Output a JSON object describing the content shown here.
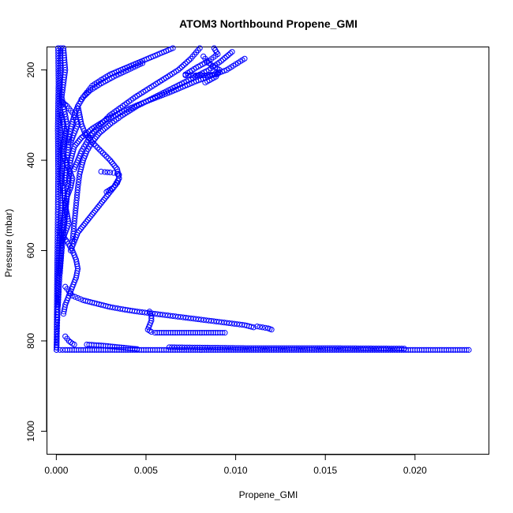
{
  "chart_data": {
    "type": "scatter",
    "title": "ATOM3 Northbound Propene_GMI",
    "xlabel": "Propene_GMI",
    "ylabel": "Pressure (mbar)",
    "xlim": [
      -0.0005,
      0.0241
    ],
    "ylim": [
      1050,
      150
    ],
    "y_reversed": true,
    "x_ticks": [
      "0.000",
      "0.005",
      "0.010",
      "0.015",
      "0.020"
    ],
    "x_tick_values": [
      0,
      0.005,
      0.01,
      0.015,
      0.02
    ],
    "y_ticks": [
      "200",
      "400",
      "600",
      "800",
      "1000"
    ],
    "y_tick_values": [
      200,
      400,
      600,
      800,
      1000
    ],
    "grid": false,
    "legend": "none",
    "color": "#0000ff",
    "series": [
      {
        "x": [
          0.00025,
          0.0002,
          0.0002,
          0.00022,
          0.00025,
          0.0002,
          0.00015,
          0.00012,
          0.0001,
          8e-05,
          5e-05,
          3e-05,
          2e-05,
          1e-05
        ],
        "y": [
          150,
          250,
          350,
          450,
          500,
          550,
          600,
          650,
          700,
          730,
          760,
          790,
          810,
          820
        ]
      },
      {
        "x": [
          0.0001,
          0.00012,
          8e-05,
          0.0001,
          8e-05,
          6e-05,
          4e-05,
          3e-05,
          2e-05,
          1e-05
        ],
        "y": [
          150,
          230,
          330,
          430,
          520,
          600,
          660,
          720,
          780,
          820
        ]
      },
      {
        "x": [
          0.0004,
          0.0005,
          0.0003,
          0.0006,
          0.0004,
          0.0003,
          0.0005,
          0.0003,
          0.0002,
          0.0001
        ],
        "y": [
          150,
          200,
          260,
          320,
          380,
          440,
          500,
          560,
          640,
          720
        ]
      },
      {
        "x": [
          0.0105,
          0.0095,
          0.0078,
          0.0063,
          0.005,
          0.0038,
          0.0028,
          0.002,
          0.0014,
          0.001,
          0.0008,
          0.0007,
          0.0006,
          0.0005,
          0.0004,
          0.0003,
          0.0002
        ],
        "y": [
          175,
          200,
          225,
          250,
          270,
          290,
          310,
          330,
          350,
          370,
          400,
          440,
          480,
          520,
          560,
          600,
          650
        ]
      },
      {
        "x": [
          0.0098,
          0.0092,
          0.0085,
          0.0075,
          0.0065,
          0.0055,
          0.0045,
          0.0037,
          0.003,
          0.0024,
          0.002,
          0.0017,
          0.0015,
          0.0013,
          0.0012,
          0.0011,
          0.001,
          0.0009
        ],
        "y": [
          160,
          180,
          200,
          220,
          240,
          260,
          280,
          300,
          320,
          340,
          360,
          380,
          400,
          430,
          460,
          500,
          540,
          580
        ]
      },
      {
        "x": [
          0.008,
          0.0075,
          0.0068,
          0.006,
          0.0052,
          0.0044,
          0.0037,
          0.003,
          0.0025,
          0.002,
          0.0017,
          0.0014,
          0.0012,
          0.001
        ],
        "y": [
          150,
          175,
          200,
          220,
          240,
          260,
          280,
          300,
          320,
          340,
          360,
          380,
          400,
          420
        ]
      },
      {
        "x": [
          0.0088,
          0.009,
          0.0085,
          0.0078,
          0.0072
        ],
        "y": [
          150,
          165,
          180,
          195,
          210
        ]
      },
      {
        "x": [
          0.0082,
          0.0085,
          0.0091,
          0.0089,
          0.0083
        ],
        "y": [
          170,
          185,
          200,
          215,
          228
        ]
      },
      {
        "x": [
          0.0065,
          0.006,
          0.0054,
          0.0048,
          0.0042,
          0.0036,
          0.003,
          0.0025,
          0.002,
          0.0017,
          0.0014
        ],
        "y": [
          150,
          160,
          170,
          180,
          190,
          200,
          210,
          222,
          235,
          250,
          265
        ]
      },
      {
        "x": [
          0.0072,
          0.0078,
          0.0084,
          0.0088,
          0.009,
          0.0089
        ],
        "y": [
          212,
          212,
          212,
          210,
          208,
          206
        ]
      },
      {
        "x": [
          0.0048,
          0.004,
          0.0032,
          0.0025,
          0.0019,
          0.0015,
          0.0012,
          0.001,
          0.0008,
          0.0007,
          0.0006,
          0.0005
        ],
        "y": [
          185,
          200,
          215,
          230,
          245,
          260,
          280,
          300,
          330,
          360,
          400,
          450
        ]
      },
      {
        "x": [
          0.0012,
          0.0013,
          0.0014,
          0.0016,
          0.002,
          0.0025,
          0.003,
          0.0034,
          0.0035,
          0.0032,
          0.0028,
          0.0024,
          0.002,
          0.0016,
          0.0012,
          0.001,
          0.0008
        ],
        "y": [
          280,
          300,
          320,
          340,
          360,
          380,
          400,
          420,
          440,
          460,
          480,
          500,
          520,
          540,
          560,
          580,
          600
        ]
      },
      {
        "x": [
          0.0025,
          0.0027,
          0.003,
          0.0032,
          0.0034,
          0.0035,
          0.0035,
          0.0034,
          0.0033,
          0.0032,
          0.003,
          0.0028
        ],
        "y": [
          425,
          426,
          427,
          428,
          430,
          432,
          440,
          450,
          455,
          460,
          465,
          470
        ]
      },
      {
        "x": [
          0.0005,
          0.0007,
          0.0009,
          0.0012,
          0.0015,
          0.002,
          0.0025,
          0.003,
          0.0037,
          0.0045,
          0.0055,
          0.0065,
          0.0075,
          0.0085,
          0.0095,
          0.0105,
          0.011
        ],
        "y": [
          680,
          690,
          700,
          705,
          710,
          715,
          720,
          725,
          730,
          735,
          740,
          745,
          750,
          755,
          760,
          765,
          770
        ]
      },
      {
        "x": [
          0.0112,
          0.0115,
          0.0118,
          0.012
        ],
        "y": [
          768,
          770,
          772,
          775
        ]
      },
      {
        "x": [
          0.0052,
          0.0053,
          0.0053,
          0.0052,
          0.0051,
          0.0053,
          0.0055,
          0.006,
          0.0065,
          0.007,
          0.0075,
          0.008,
          0.0085,
          0.009,
          0.0094
        ],
        "y": [
          735,
          745,
          755,
          765,
          775,
          780,
          782,
          782,
          782,
          782,
          782,
          782,
          782,
          782,
          782
        ]
      },
      {
        "x": [
          0.0005,
          0.0006,
          0.0007,
          0.0008,
          0.0009,
          0.001
        ],
        "y": [
          790,
          795,
          800,
          803,
          806,
          808
        ]
      },
      {
        "x": [
          0.0017,
          0.0025,
          0.003,
          0.0035,
          0.004,
          0.0045
        ],
        "y": [
          808,
          810,
          812,
          814,
          816,
          818
        ]
      },
      {
        "x": [
          0.0002,
          0.0005,
          0.001,
          0.0015,
          0.002,
          0.0025,
          0.003,
          0.0035,
          0.004,
          0.0045,
          0.005,
          0.0055,
          0.006,
          0.0065,
          0.007,
          0.0075,
          0.008,
          0.0085,
          0.009,
          0.0095,
          0.01,
          0.0105,
          0.011,
          0.0115,
          0.012,
          0.0125,
          0.013,
          0.0135,
          0.014,
          0.0145,
          0.015,
          0.0155,
          0.016,
          0.0165,
          0.017,
          0.0175,
          0.018,
          0.0185,
          0.019,
          0.0195,
          0.02,
          0.0205,
          0.021,
          0.0215,
          0.022,
          0.0225,
          0.023
        ],
        "y": [
          820,
          820,
          820,
          820,
          820,
          820,
          820,
          820,
          820,
          820,
          820,
          820,
          820,
          820,
          820,
          820,
          820,
          820,
          820,
          820,
          820,
          820,
          820,
          820,
          820,
          820,
          820,
          820,
          820,
          820,
          820,
          820,
          820,
          820,
          820,
          820,
          820,
          820,
          820,
          820,
          820,
          820,
          820,
          820,
          820,
          820,
          820
        ]
      },
      {
        "x": [
          0.0063,
          0.0107,
          0.0154,
          0.0194
        ],
        "y": [
          814,
          816,
          816,
          817
        ]
      },
      {
        "x": [
          0.0003,
          0.0004,
          0.0005,
          0.0004,
          0.0003,
          0.0005,
          0.0007,
          0.0009,
          0.0008,
          0.0006,
          0.0005,
          0.0006,
          0.0007,
          0.0005,
          0.0003
        ],
        "y": [
          300,
          320,
          340,
          360,
          380,
          400,
          420,
          440,
          460,
          480,
          500,
          520,
          540,
          560,
          580
        ]
      },
      {
        "x": [
          0.0002,
          0.0006,
          0.0009,
          0.0011,
          0.0012,
          0.0011,
          0.0009,
          0.0007,
          0.0005,
          0.0004
        ],
        "y": [
          560,
          580,
          600,
          620,
          640,
          660,
          680,
          700,
          720,
          740
        ]
      },
      {
        "x": [
          0.0003,
          0.0006,
          0.0008,
          0.001,
          0.0011,
          0.0012,
          0.0011,
          0.001,
          0.0009,
          0.0008
        ],
        "y": [
          270,
          280,
          290,
          300,
          310,
          320,
          330,
          340,
          350,
          360
        ]
      }
    ]
  }
}
